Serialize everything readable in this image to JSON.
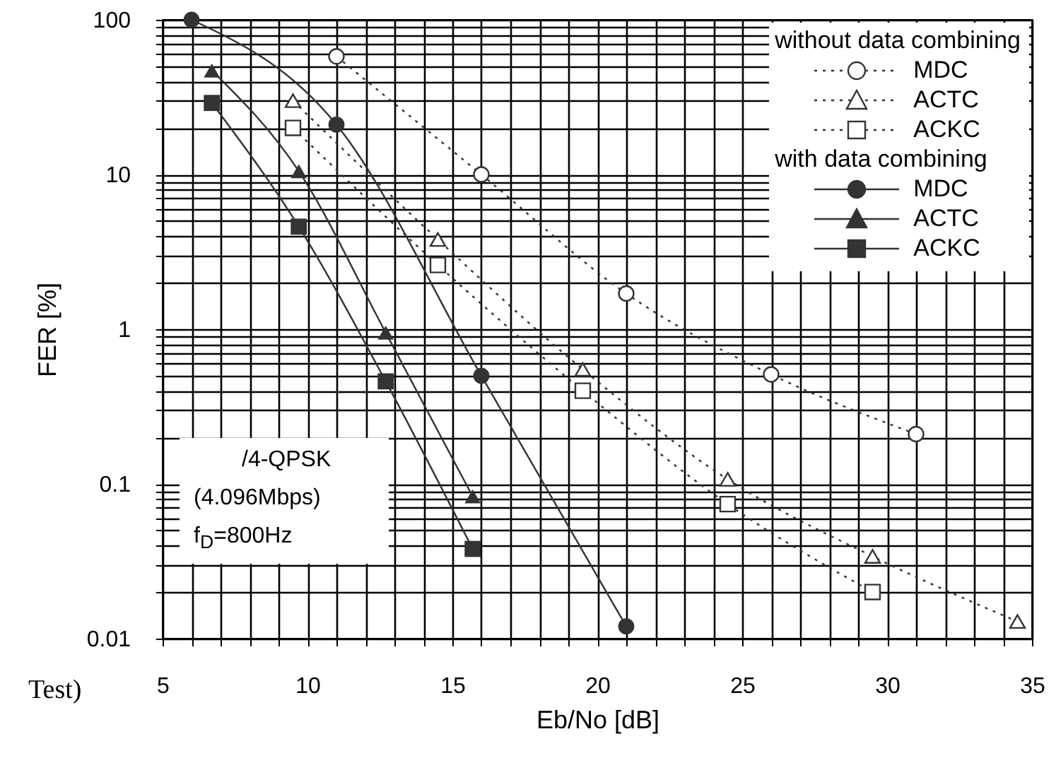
{
  "chart_data": {
    "type": "line",
    "xlabel": "Eb/No [dB]",
    "ylabel": "FER  [%]",
    "log": "y",
    "grid": true,
    "legend": "top right",
    "xlim": [
      5,
      35
    ],
    "ylim": [
      0.01,
      100
    ],
    "xticks": [
      5,
      {
        "value": 6,
        "label": null
      },
      {
        "value": 7,
        "label": null
      },
      {
        "value": 8,
        "label": null
      },
      {
        "value": 9,
        "label": null
      },
      10,
      {
        "value": 11,
        "label": null
      },
      {
        "value": 12,
        "label": null
      },
      {
        "value": 13,
        "label": null
      },
      {
        "value": 14,
        "label": null
      },
      15,
      {
        "value": 16,
        "label": null
      },
      {
        "value": 17,
        "label": null
      },
      {
        "value": 18,
        "label": null
      },
      {
        "value": 19,
        "label": null
      },
      20,
      {
        "value": 21,
        "label": null
      },
      {
        "value": 22,
        "label": null
      },
      {
        "value": 23,
        "label": null
      },
      {
        "value": 24,
        "label": null
      },
      25,
      {
        "value": 26,
        "label": null
      },
      {
        "value": 27,
        "label": null
      },
      {
        "value": 28,
        "label": null
      },
      {
        "value": 29,
        "label": null
      },
      30,
      {
        "value": 31,
        "label": null
      },
      {
        "value": 32,
        "label": null
      },
      {
        "value": 33,
        "label": null
      },
      {
        "value": 34,
        "label": null
      },
      35
    ],
    "yticks": [
      0.01,
      {
        "value": 0.02,
        "label": null
      },
      {
        "value": 0.03,
        "label": null
      },
      {
        "value": 0.04,
        "label": null
      },
      {
        "value": 0.05,
        "label": null
      },
      {
        "value": 0.06,
        "label": null
      },
      {
        "value": 0.07,
        "label": null
      },
      {
        "value": 0.08,
        "label": null
      },
      {
        "value": 0.09,
        "label": null
      },
      0.1,
      {
        "value": 0.2,
        "label": null
      },
      {
        "value": 0.3,
        "label": null
      },
      {
        "value": 0.4,
        "label": null
      },
      {
        "value": 0.5,
        "label": null
      },
      {
        "value": 0.6,
        "label": null
      },
      {
        "value": 0.7,
        "label": null
      },
      {
        "value": 0.8,
        "label": null
      },
      {
        "value": 0.9,
        "label": null
      },
      1,
      {
        "value": 2,
        "label": null
      },
      {
        "value": 3,
        "label": null
      },
      {
        "value": 4,
        "label": null
      },
      {
        "value": 5,
        "label": null
      },
      {
        "value": 6,
        "label": null
      },
      {
        "value": 7,
        "label": null
      },
      {
        "value": 8,
        "label": null
      },
      {
        "value": 9,
        "label": null
      },
      10,
      {
        "value": 20,
        "label": null
      },
      {
        "value": 30,
        "label": null
      },
      {
        "value": 40,
        "label": null
      },
      {
        "value": 50,
        "label": null
      },
      {
        "value": 60,
        "label": null
      },
      {
        "value": 70,
        "label": null
      },
      {
        "value": 80,
        "label": null
      },
      {
        "value": 90,
        "label": null
      },
      100
    ],
    "annotations": [
      "without data combining",
      "with data combining",
      "/4-QPSK",
      "(4.096Mbps)",
      "f$_{D}$=800Hz",
      "Test)"
    ],
    "series": [
      {
        "name": "MDC",
        "color": "#333333",
        "marker": "circle",
        "line_style": "dotted",
        "x": [
          11,
          16,
          21,
          26,
          31
        ],
        "values": [
          58,
          10,
          1.7,
          0.51,
          0.21
        ]
      },
      {
        "name": "ACTC",
        "color": "#333333",
        "marker": "triangle",
        "line_style": "dotted",
        "x": [
          9.5,
          14.5,
          19.5,
          24.5,
          29.5,
          34.5
        ],
        "values": [
          30,
          3.8,
          0.55,
          0.107,
          0.034,
          0.0129
        ]
      },
      {
        "name": "ACKC",
        "color": "#333333",
        "marker": "square",
        "line_style": "dotted",
        "x": [
          9.5,
          14.5,
          19.5,
          24.5,
          29.5
        ],
        "values": [
          20,
          2.6,
          0.4,
          0.074,
          0.02
        ]
      },
      {
        "name": "MDC",
        "color": "#333333",
        "marker": "circle",
        "line_style": "solid",
        "x": [
          6,
          11,
          16,
          21
        ],
        "values": [
          100,
          21,
          0.5,
          0.012
        ]
      },
      {
        "name": "ACTC",
        "color": "#333333",
        "marker": "triangle",
        "line_style": "solid",
        "x": [
          6.7,
          9.7,
          12.7,
          15.7
        ],
        "values": [
          47,
          10.5,
          0.95,
          0.083
        ]
      },
      {
        "name": "ACKC",
        "color": "#333333",
        "marker": "square",
        "line_style": "solid",
        "x": [
          6.7,
          9.7,
          12.7,
          15.7
        ],
        "values": [
          29,
          4.6,
          0.46,
          0.038
        ]
      }
    ]
  }
}
